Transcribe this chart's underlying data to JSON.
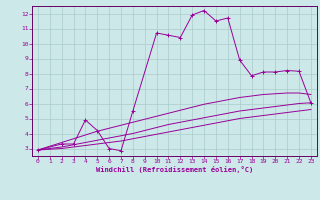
{
  "xlabel": "Windchill (Refroidissement éolien,°C)",
  "bg_color": "#cce8e8",
  "grid_color": "#aacccc",
  "line_color": "#990099",
  "spine_color": "#660066",
  "xlim": [
    -0.5,
    23.5
  ],
  "ylim": [
    2.5,
    12.5
  ],
  "xticks": [
    0,
    1,
    2,
    3,
    4,
    5,
    6,
    7,
    8,
    9,
    10,
    11,
    12,
    13,
    14,
    15,
    16,
    17,
    18,
    19,
    20,
    21,
    22,
    23
  ],
  "yticks": [
    3,
    4,
    5,
    6,
    7,
    8,
    9,
    10,
    11,
    12
  ],
  "series_jagged_x": [
    0,
    2,
    3,
    4,
    5,
    6,
    7,
    8,
    10,
    11,
    12,
    13,
    14,
    15,
    16,
    17,
    18,
    19,
    20,
    21,
    22,
    23
  ],
  "series_jagged_y": [
    2.9,
    3.3,
    3.3,
    4.9,
    4.2,
    3.0,
    2.85,
    5.5,
    10.7,
    10.55,
    10.4,
    11.9,
    12.2,
    11.5,
    11.7,
    8.9,
    7.85,
    8.1,
    8.1,
    8.2,
    8.15,
    6.05
  ],
  "series_upper_x": [
    0,
    1,
    2,
    3,
    4,
    5,
    6,
    7,
    8,
    9,
    10,
    11,
    12,
    13,
    14,
    15,
    16,
    17,
    18,
    19,
    20,
    21,
    22,
    23
  ],
  "series_upper_y": [
    2.9,
    3.15,
    3.4,
    3.65,
    3.9,
    4.15,
    4.35,
    4.55,
    4.75,
    4.95,
    5.15,
    5.35,
    5.55,
    5.75,
    5.95,
    6.1,
    6.25,
    6.4,
    6.5,
    6.6,
    6.65,
    6.7,
    6.7,
    6.6
  ],
  "series_mid_x": [
    0,
    1,
    2,
    3,
    4,
    5,
    6,
    7,
    8,
    9,
    10,
    11,
    12,
    13,
    14,
    15,
    16,
    17,
    18,
    19,
    20,
    21,
    22,
    23
  ],
  "series_mid_y": [
    2.9,
    3.0,
    3.1,
    3.25,
    3.4,
    3.55,
    3.7,
    3.85,
    4.0,
    4.2,
    4.4,
    4.6,
    4.75,
    4.9,
    5.05,
    5.2,
    5.35,
    5.5,
    5.6,
    5.7,
    5.8,
    5.9,
    6.0,
    6.05
  ],
  "series_lower_x": [
    0,
    1,
    2,
    3,
    4,
    5,
    6,
    7,
    8,
    9,
    10,
    11,
    12,
    13,
    14,
    15,
    16,
    17,
    18,
    19,
    20,
    21,
    22,
    23
  ],
  "series_lower_y": [
    2.9,
    2.95,
    3.0,
    3.1,
    3.2,
    3.3,
    3.4,
    3.5,
    3.65,
    3.8,
    3.95,
    4.1,
    4.25,
    4.4,
    4.55,
    4.7,
    4.85,
    5.0,
    5.1,
    5.2,
    5.3,
    5.4,
    5.5,
    5.6
  ]
}
